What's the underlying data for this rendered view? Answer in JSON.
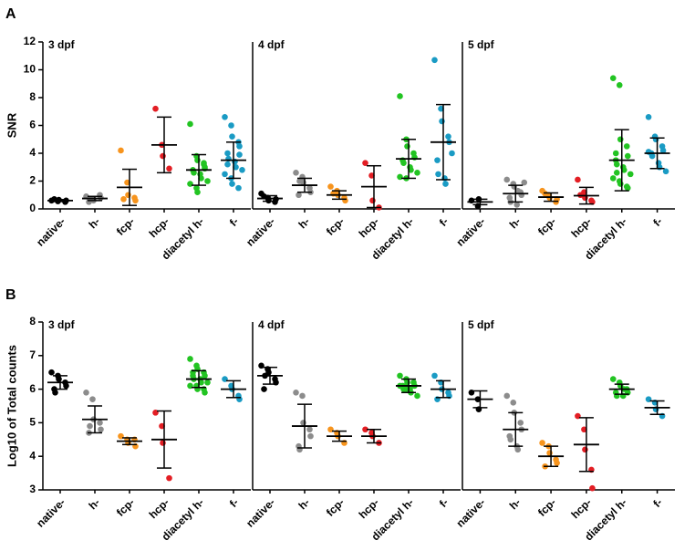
{
  "chart_data": [
    {
      "type": "dot",
      "panel": "A",
      "ylabel": "SNR",
      "title": "3 dpf",
      "ylim": [
        0,
        12
      ],
      "yticks": [
        0,
        2,
        4,
        6,
        8,
        10,
        12
      ],
      "categories": [
        "native-",
        "h-",
        "fcp-",
        "hcp-",
        "diacetyl h-",
        "f-"
      ],
      "colors": [
        "#000000",
        "#8c8c8c",
        "#f7941d",
        "#e31e24",
        "#22c422",
        "#1a9bc4"
      ],
      "values": [
        [
          0.6,
          0.55,
          0.65,
          0.5,
          0.6,
          0.7
        ],
        [
          0.9,
          0.7,
          0.6,
          1.0,
          0.8,
          0.5,
          0.7
        ],
        [
          4.2,
          1.9,
          1.0,
          0.8,
          0.6,
          0.7
        ],
        [
          7.2,
          4.6,
          3.8,
          2.9
        ],
        [
          6.1,
          3.8,
          3.5,
          3.2,
          3.0,
          2.8,
          2.6,
          2.5,
          2.2,
          2.0,
          1.8,
          1.5,
          1.2,
          3.3,
          2.9
        ],
        [
          6.6,
          6.0,
          5.2,
          4.8,
          4.5,
          4.0,
          3.6,
          3.4,
          3.0,
          2.8,
          2.5,
          2.2,
          1.8,
          1.5,
          3.9,
          3.2
        ]
      ],
      "means": [
        0.6,
        0.75,
        1.55,
        4.6,
        2.8,
        3.5
      ],
      "sd": [
        0.07,
        0.15,
        1.3,
        2.0,
        1.1,
        1.3
      ]
    },
    {
      "type": "dot",
      "title": "4 dpf",
      "ylim": [
        0,
        12
      ],
      "categories": [
        "native-",
        "h-",
        "fcp-",
        "hcp-",
        "diacetyl h-",
        "f-"
      ],
      "colors": [
        "#000000",
        "#8c8c8c",
        "#f7941d",
        "#e31e24",
        "#22c422",
        "#1a9bc4"
      ],
      "values": [
        [
          1.1,
          0.8,
          0.6,
          0.5,
          0.7,
          0.9
        ],
        [
          2.6,
          2.3,
          1.9,
          1.5,
          1.2,
          1.0,
          2.0
        ],
        [
          1.6,
          1.3,
          1.0,
          0.8,
          0.6,
          1.1
        ],
        [
          3.3,
          2.4,
          0.6,
          0.1
        ],
        [
          8.1,
          5.0,
          4.5,
          4.0,
          3.7,
          3.5,
          3.3,
          3.0,
          2.8,
          2.6,
          2.3,
          2.2
        ],
        [
          10.7,
          7.2,
          6.3,
          5.2,
          4.8,
          3.5,
          2.5,
          2.2,
          1.8,
          4.0
        ]
      ],
      "means": [
        0.75,
        1.7,
        1.0,
        1.6,
        3.6,
        4.8
      ],
      "sd": [
        0.2,
        0.5,
        0.3,
        1.5,
        1.4,
        2.7
      ]
    },
    {
      "type": "dot",
      "title": "5 dpf",
      "ylim": [
        0,
        12
      ],
      "categories": [
        "native-",
        "h-",
        "fcp-",
        "hcp-",
        "diacetyl h-",
        "f-"
      ],
      "colors": [
        "#000000",
        "#8c8c8c",
        "#f7941d",
        "#e31e24",
        "#22c422",
        "#1a9bc4"
      ],
      "values": [
        [
          0.6,
          0.2,
          0.7
        ],
        [
          2.1,
          1.8,
          1.6,
          1.2,
          1.0,
          0.8,
          0.5,
          0.3,
          1.3,
          1.9
        ],
        [
          1.3,
          1.0,
          0.8,
          0.5,
          0.7,
          1.1
        ],
        [
          2.1,
          1.2,
          0.8,
          0.6,
          0.5,
          1.0
        ],
        [
          9.4,
          8.9,
          5.0,
          4.5,
          3.8,
          3.5,
          3.2,
          3.0,
          2.8,
          2.5,
          2.2,
          2.0,
          1.8,
          1.6,
          1.5,
          4.0,
          2.6
        ],
        [
          6.6,
          5.2,
          5.0,
          4.5,
          4.2,
          4.0,
          3.8,
          3.3,
          3.0,
          2.7,
          4.1
        ]
      ],
      "means": [
        0.5,
        1.1,
        0.85,
        0.95,
        3.5,
        4.0
      ],
      "sd": [
        0.2,
        0.6,
        0.3,
        0.6,
        2.2,
        1.1
      ]
    },
    {
      "type": "dot",
      "panel": "B",
      "ylabel": "Log10 of Total counts",
      "title": "3 dpf",
      "ylim": [
        3,
        8
      ],
      "yticks": [
        3,
        4,
        5,
        6,
        7,
        8
      ],
      "categories": [
        "native-",
        "h-",
        "fcp-",
        "hcp-",
        "diacetyl h-",
        "f-"
      ],
      "colors": [
        "#000000",
        "#8c8c8c",
        "#f7941d",
        "#e31e24",
        "#22c422",
        "#1a9bc4"
      ],
      "values": [
        [
          6.5,
          6.4,
          6.3,
          6.2,
          6.1,
          6.0,
          5.9
        ],
        [
          5.9,
          5.7,
          5.1,
          5.0,
          4.8,
          4.7,
          4.9
        ],
        [
          4.6,
          4.5,
          4.4,
          4.5,
          4.3
        ],
        [
          5.3,
          4.9,
          4.4,
          3.35
        ],
        [
          6.9,
          6.7,
          6.6,
          6.5,
          6.4,
          6.4,
          6.3,
          6.3,
          6.2,
          6.2,
          6.1,
          6.1,
          6.0,
          6.0,
          5.9,
          6.5
        ],
        [
          6.3,
          6.1,
          6.0,
          5.8,
          5.7
        ]
      ],
      "means": [
        6.2,
        5.1,
        4.45,
        4.5,
        6.3,
        6.0
      ],
      "sd": [
        0.2,
        0.4,
        0.1,
        0.85,
        0.25,
        0.25
      ]
    },
    {
      "type": "dot",
      "title": "4 dpf",
      "ylim": [
        3,
        8
      ],
      "categories": [
        "native-",
        "h-",
        "fcp-",
        "hcp-",
        "diacetyl h-",
        "f-"
      ],
      "colors": [
        "#000000",
        "#8c8c8c",
        "#f7941d",
        "#e31e24",
        "#22c422",
        "#1a9bc4"
      ],
      "values": [
        [
          6.7,
          6.6,
          6.5,
          6.3,
          6.2,
          6.0,
          6.4
        ],
        [
          5.9,
          5.8,
          5.0,
          4.8,
          4.6,
          4.3,
          4.2
        ],
        [
          4.8,
          4.7,
          4.6,
          4.4
        ],
        [
          4.8,
          4.7,
          4.6,
          4.4
        ],
        [
          6.4,
          6.3,
          6.2,
          6.2,
          6.1,
          6.1,
          6.0,
          6.0,
          5.9,
          5.8,
          6.1,
          6.0
        ],
        [
          6.4,
          6.2,
          6.0,
          5.9,
          5.8,
          5.7
        ]
      ],
      "means": [
        6.4,
        4.9,
        4.6,
        4.6,
        6.1,
        6.0
      ],
      "sd": [
        0.25,
        0.65,
        0.15,
        0.2,
        0.2,
        0.25
      ]
    },
    {
      "type": "dot",
      "title": "5 dpf",
      "ylim": [
        3,
        8
      ],
      "categories": [
        "native-",
        "h-",
        "fcp-",
        "hcp-",
        "diacetyl h-",
        "f-"
      ],
      "colors": [
        "#000000",
        "#8c8c8c",
        "#f7941d",
        "#e31e24",
        "#22c422",
        "#1a9bc4"
      ],
      "values": [
        [
          5.9,
          5.7,
          5.4
        ],
        [
          5.8,
          5.6,
          5.3,
          5.0,
          4.8,
          4.6,
          4.5,
          4.3,
          4.2
        ],
        [
          4.4,
          4.3,
          4.1,
          3.9,
          3.8,
          3.7
        ],
        [
          5.2,
          4.8,
          4.2,
          3.6,
          3.05
        ],
        [
          6.3,
          6.2,
          6.1,
          6.0,
          5.9,
          5.9,
          5.8,
          5.8,
          6.0
        ],
        [
          5.7,
          5.6,
          5.4,
          5.2
        ]
      ],
      "means": [
        5.7,
        4.8,
        4.0,
        4.35,
        6.0,
        5.45
      ],
      "sd": [
        0.25,
        0.5,
        0.3,
        0.8,
        0.15,
        0.2
      ]
    }
  ]
}
